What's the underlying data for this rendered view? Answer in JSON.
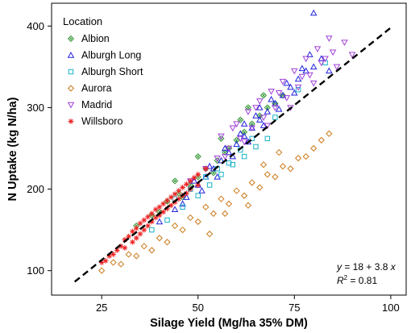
{
  "chart_data": {
    "type": "scatter",
    "xlabel": "Silage Yield (Mg/ha 35% DM)",
    "ylabel": "N Uptake (kg N/ha)",
    "xlim": [
      12,
      104
    ],
    "ylim": [
      70,
      428
    ],
    "xticks": [
      25,
      50,
      75,
      100
    ],
    "yticks": [
      100,
      200,
      300,
      400
    ],
    "grid": false,
    "legend": {
      "title": "Location",
      "placement": "top-left"
    },
    "series": [
      {
        "name": "Albion",
        "marker": "diamond-x",
        "color": "#3a9a3a",
        "points": [
          [
            34,
            155
          ],
          [
            38,
            168
          ],
          [
            42,
            185
          ],
          [
            45,
            195
          ],
          [
            48,
            205
          ],
          [
            50,
            215
          ],
          [
            52,
            225
          ],
          [
            55,
            235
          ],
          [
            57,
            245
          ],
          [
            60,
            260
          ],
          [
            62,
            270
          ],
          [
            64,
            280
          ],
          [
            66,
            290
          ],
          [
            68,
            300
          ],
          [
            70,
            305
          ],
          [
            72,
            315
          ],
          [
            58,
            250
          ],
          [
            54,
            220
          ],
          [
            46,
            190
          ],
          [
            40,
            172
          ],
          [
            63,
            300
          ],
          [
            67,
            315
          ],
          [
            61,
            285
          ],
          [
            56,
            262
          ],
          [
            50,
            240
          ],
          [
            44,
            210
          ]
        ]
      },
      {
        "name": "Alburgh Long",
        "marker": "triangle",
        "color": "#2222dd",
        "points": [
          [
            40,
            160
          ],
          [
            44,
            175
          ],
          [
            47,
            190
          ],
          [
            50,
            205
          ],
          [
            52,
            215
          ],
          [
            54,
            225
          ],
          [
            56,
            235
          ],
          [
            58,
            245
          ],
          [
            60,
            255
          ],
          [
            62,
            265
          ],
          [
            64,
            275
          ],
          [
            66,
            285
          ],
          [
            68,
            295
          ],
          [
            70,
            305
          ],
          [
            72,
            315
          ],
          [
            74,
            325
          ],
          [
            76,
            335
          ],
          [
            78,
            345
          ],
          [
            80,
            350
          ],
          [
            82,
            360
          ],
          [
            49,
            210
          ],
          [
            53,
            228
          ],
          [
            57,
            250
          ],
          [
            61,
            268
          ],
          [
            65,
            290
          ],
          [
            69,
            310
          ],
          [
            73,
            330
          ],
          [
            77,
            348
          ],
          [
            59,
            240
          ],
          [
            63,
            258
          ],
          [
            67,
            278
          ],
          [
            71,
            298
          ],
          [
            75,
            318
          ],
          [
            55,
            215
          ],
          [
            51,
            198
          ],
          [
            46,
            182
          ],
          [
            80,
            416
          ],
          [
            79,
            365
          ],
          [
            84,
            345
          ],
          [
            66,
            300
          ],
          [
            62,
            280
          ]
        ]
      },
      {
        "name": "Alburgh Short",
        "marker": "square",
        "color": "#1ab0c8",
        "points": [
          [
            38,
            150
          ],
          [
            42,
            162
          ],
          [
            46,
            178
          ],
          [
            50,
            192
          ],
          [
            53,
            205
          ],
          [
            56,
            218
          ],
          [
            59,
            230
          ],
          [
            62,
            240
          ],
          [
            65,
            252
          ],
          [
            68,
            262
          ],
          [
            44,
            188
          ],
          [
            48,
            200
          ],
          [
            52,
            215
          ],
          [
            58,
            232
          ],
          [
            61,
            248
          ],
          [
            83,
            355
          ],
          [
            76,
            322
          ],
          [
            70,
            288
          ],
          [
            64,
            262
          ],
          [
            55,
            225
          ]
        ]
      },
      {
        "name": "Aurora",
        "marker": "diamond",
        "color": "#cc7a1a",
        "points": [
          [
            25,
            100
          ],
          [
            28,
            110
          ],
          [
            32,
            120
          ],
          [
            36,
            130
          ],
          [
            40,
            140
          ],
          [
            44,
            155
          ],
          [
            48,
            165
          ],
          [
            52,
            178
          ],
          [
            56,
            188
          ],
          [
            60,
            198
          ],
          [
            64,
            208
          ],
          [
            68,
            218
          ],
          [
            72,
            228
          ],
          [
            76,
            238
          ],
          [
            80,
            250
          ],
          [
            84,
            268
          ],
          [
            46,
            150
          ],
          [
            50,
            160
          ],
          [
            54,
            170
          ],
          [
            58,
            182
          ],
          [
            62,
            192
          ],
          [
            66,
            202
          ],
          [
            70,
            215
          ],
          [
            74,
            225
          ],
          [
            78,
            240
          ],
          [
            42,
            135
          ],
          [
            38,
            125
          ],
          [
            34,
            118
          ],
          [
            30,
            108
          ],
          [
            82,
            260
          ],
          [
            63,
            180
          ],
          [
            57,
            170
          ],
          [
            67,
            230
          ],
          [
            71,
            245
          ],
          [
            53,
            145
          ]
        ]
      },
      {
        "name": "Madrid",
        "marker": "triangle-down",
        "color": "#a040d8",
        "points": [
          [
            48,
            210
          ],
          [
            52,
            225
          ],
          [
            55,
            238
          ],
          [
            58,
            250
          ],
          [
            61,
            262
          ],
          [
            64,
            275
          ],
          [
            67,
            288
          ],
          [
            70,
            300
          ],
          [
            73,
            312
          ],
          [
            76,
            325
          ],
          [
            79,
            340
          ],
          [
            82,
            355
          ],
          [
            85,
            368
          ],
          [
            88,
            380
          ],
          [
            60,
            280
          ],
          [
            63,
            295
          ],
          [
            66,
            308
          ],
          [
            69,
            320
          ],
          [
            72,
            332
          ],
          [
            75,
            345
          ],
          [
            78,
            360
          ],
          [
            81,
            372
          ],
          [
            84,
            385
          ],
          [
            57,
            240
          ],
          [
            62,
            258
          ],
          [
            68,
            278
          ],
          [
            74,
            300
          ],
          [
            80,
            330
          ],
          [
            86,
            350
          ],
          [
            90,
            365
          ],
          [
            56,
            265
          ],
          [
            59,
            275
          ],
          [
            65,
            300
          ],
          [
            71,
            318
          ],
          [
            77,
            338
          ],
          [
            83,
            360
          ]
        ]
      },
      {
        "name": "Willsboro",
        "marker": "asterisk",
        "color": "#ee2222",
        "points": [
          [
            25,
            110
          ],
          [
            27,
            118
          ],
          [
            29,
            125
          ],
          [
            30,
            130
          ],
          [
            31,
            138
          ],
          [
            32,
            142
          ],
          [
            33,
            148
          ],
          [
            34,
            152
          ],
          [
            35,
            158
          ],
          [
            36,
            162
          ],
          [
            37,
            166
          ],
          [
            38,
            170
          ],
          [
            39,
            175
          ],
          [
            40,
            178
          ],
          [
            41,
            182
          ],
          [
            42,
            186
          ],
          [
            43,
            190
          ],
          [
            44,
            194
          ],
          [
            45,
            198
          ],
          [
            46,
            202
          ],
          [
            47,
            206
          ],
          [
            48,
            210
          ],
          [
            49,
            214
          ],
          [
            50,
            218
          ],
          [
            35,
            145
          ],
          [
            37,
            155
          ],
          [
            39,
            165
          ],
          [
            41,
            172
          ],
          [
            43,
            180
          ],
          [
            45,
            188
          ],
          [
            34,
            140
          ],
          [
            36,
            150
          ],
          [
            38,
            160
          ],
          [
            40,
            168
          ],
          [
            42,
            176
          ],
          [
            44,
            184
          ],
          [
            46,
            192
          ],
          [
            48,
            200
          ],
          [
            33,
            135
          ],
          [
            31,
            128
          ],
          [
            28,
            120
          ],
          [
            26,
            112
          ],
          [
            52,
            225
          ],
          [
            50,
            205
          ],
          [
            47,
            195
          ]
        ]
      }
    ],
    "fit_line": {
      "intercept": 18,
      "slope": 3.8,
      "x_range": [
        18,
        100
      ],
      "style": "dashed",
      "color": "#000000"
    },
    "annotation": {
      "equation_y": "y",
      "equation_rhs": " = 18 + 3.8 ",
      "equation_x": "x",
      "r2_label": "R",
      "r2_sup": "2",
      "r2_value": " = 0.81"
    }
  }
}
